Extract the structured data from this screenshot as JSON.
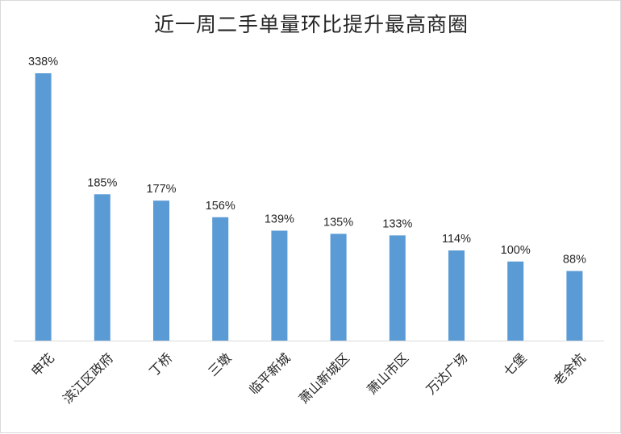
{
  "chart_data": {
    "type": "bar",
    "title": "近一周二手单量环比提升最高商圈",
    "categories": [
      "申花",
      "滨江区政府",
      "丁桥",
      "三墩",
      "临平新城",
      "萧山新城区",
      "萧山市区",
      "万达广场",
      "七堡",
      "老余杭"
    ],
    "values": [
      338,
      185,
      177,
      156,
      139,
      135,
      133,
      114,
      100,
      88
    ],
    "value_labels": [
      "338%",
      "185%",
      "177%",
      "156%",
      "139%",
      "135%",
      "133%",
      "114%",
      "100%",
      "88%"
    ],
    "unit": "%",
    "ylim": [
      0,
      338
    ],
    "grid": false,
    "legend": "none",
    "bar_color": "#5b9bd5",
    "axis_color": "#d9d9d9",
    "text_color": "#262626"
  }
}
